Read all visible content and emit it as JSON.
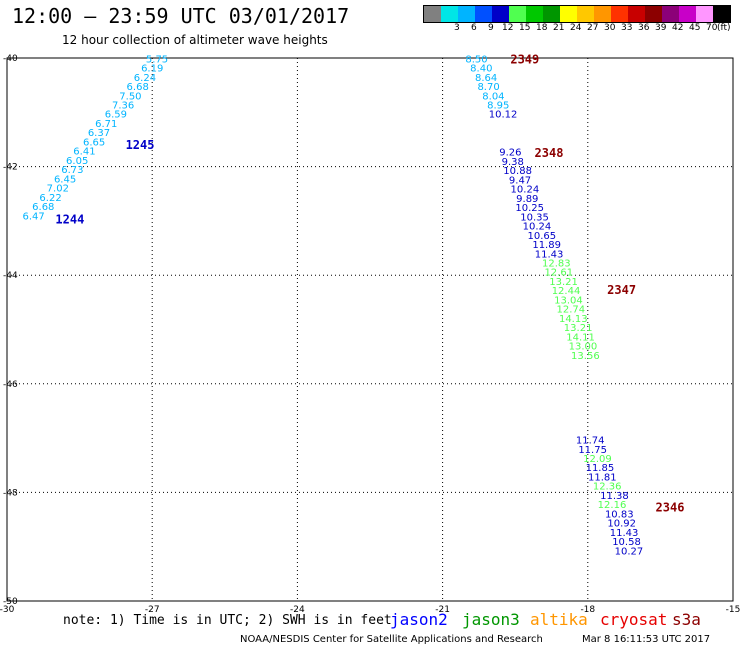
{
  "header": {
    "title": "12:00 – 23:59 UTC 03/01/2017",
    "subtitle": "12 hour collection of altimeter wave heights"
  },
  "legend": {
    "unit": "(ft)",
    "bins": [
      {
        "label": "",
        "color": "#808080"
      },
      {
        "label": "3",
        "color": "#00e6e6"
      },
      {
        "label": "6",
        "color": "#00b4ff"
      },
      {
        "label": "9",
        "color": "#0050ff"
      },
      {
        "label": "12",
        "color": "#0000c8"
      },
      {
        "label": "15",
        "color": "#50ff50"
      },
      {
        "label": "18",
        "color": "#00c800"
      },
      {
        "label": "21",
        "color": "#009600"
      },
      {
        "label": "24",
        "color": "#ffff00"
      },
      {
        "label": "27",
        "color": "#ffc800"
      },
      {
        "label": "30",
        "color": "#ff9600"
      },
      {
        "label": "33",
        "color": "#ff3200"
      },
      {
        "label": "36",
        "color": "#c80000"
      },
      {
        "label": "39",
        "color": "#8c0000"
      },
      {
        "label": "42",
        "color": "#8c0078"
      },
      {
        "label": "45",
        "color": "#c800c8"
      },
      {
        "label": "70",
        "color": "#ff96ff"
      },
      {
        "label": "",
        "color": "#000000"
      }
    ]
  },
  "footer": {
    "note": "note: 1) Time is in UTC; 2) SWH is in feet",
    "credit": "NOAA/NESDIS Center for Satellite Applications and Research",
    "timestamp": "Mar  8 16:11:53 UTC 2017",
    "satellites": [
      {
        "name": "jason2",
        "color": "#0000ff"
      },
      {
        "name": "jason3",
        "color": "#009600"
      },
      {
        "name": "altika",
        "color": "#ff9600"
      },
      {
        "name": "cryosat",
        "color": "#e60000"
      },
      {
        "name": "s3a",
        "color": "#8c0000"
      }
    ]
  },
  "chart_data": {
    "type": "scatter",
    "xlim": [
      -30,
      -15
    ],
    "ylim": [
      -50,
      -40
    ],
    "x_ticks": [
      "-30",
      "-27",
      "-24",
      "-21",
      "-18",
      "-15"
    ],
    "y_ticks": [
      "-40",
      "-42",
      "-44",
      "-46",
      "-48",
      "-50"
    ],
    "grid": true,
    "grid_style": "dotted",
    "point_labels_are_swh_ft": true,
    "series": [
      {
        "name": "jason2",
        "points": [
          {
            "lon": -26.9,
            "lat": -40.08,
            "swh": "5.75",
            "color": "#00b4ff"
          },
          {
            "lon": -27.0,
            "lat": -40.25,
            "swh": "6.19",
            "color": "#00b4ff"
          },
          {
            "lon": -27.15,
            "lat": -40.42,
            "swh": "6.24",
            "color": "#00b4ff"
          },
          {
            "lon": -27.3,
            "lat": -40.59,
            "swh": "6.68",
            "color": "#00b4ff"
          },
          {
            "lon": -27.45,
            "lat": -40.76,
            "swh": "7.50",
            "color": "#00b4ff"
          },
          {
            "lon": -27.6,
            "lat": -40.93,
            "swh": "7.36",
            "color": "#00b4ff"
          },
          {
            "lon": -27.75,
            "lat": -41.1,
            "swh": "6.59",
            "color": "#00b4ff"
          },
          {
            "lon": -27.95,
            "lat": -41.27,
            "swh": "6.71",
            "color": "#00b4ff"
          },
          {
            "lon": -28.1,
            "lat": -41.44,
            "swh": "6.37",
            "color": "#00b4ff"
          },
          {
            "lon": -28.2,
            "lat": -41.61,
            "swh": "6.65",
            "color": "#00b4ff"
          },
          {
            "lon": -28.4,
            "lat": -41.78,
            "swh": "6.41",
            "color": "#00b4ff"
          },
          {
            "lon": -28.55,
            "lat": -41.95,
            "swh": "6.05",
            "color": "#00b4ff"
          },
          {
            "lon": -28.65,
            "lat": -42.12,
            "swh": "6.73",
            "color": "#00b4ff"
          },
          {
            "lon": -28.8,
            "lat": -42.29,
            "swh": "6.45",
            "color": "#00b4ff"
          },
          {
            "lon": -28.95,
            "lat": -42.46,
            "swh": "7.02",
            "color": "#00b4ff"
          },
          {
            "lon": -29.1,
            "lat": -42.63,
            "swh": "6.22",
            "color": "#00b4ff"
          },
          {
            "lon": -29.25,
            "lat": -42.8,
            "swh": "6.68",
            "color": "#00b4ff"
          },
          {
            "lon": -29.45,
            "lat": -42.97,
            "swh": "6.47",
            "color": "#00b4ff"
          },
          {
            "lon": -20.3,
            "lat": -40.08,
            "swh": "8.50",
            "color": "#00b4ff"
          },
          {
            "lon": -20.2,
            "lat": -40.25,
            "swh": "8.40",
            "color": "#00b4ff"
          },
          {
            "lon": -20.1,
            "lat": -40.42,
            "swh": "8.64",
            "color": "#00b4ff"
          },
          {
            "lon": -20.05,
            "lat": -40.59,
            "swh": "8.70",
            "color": "#00b4ff"
          },
          {
            "lon": -19.95,
            "lat": -40.76,
            "swh": "8.04",
            "color": "#00b4ff"
          },
          {
            "lon": -19.85,
            "lat": -40.93,
            "swh": "8.95",
            "color": "#00b4ff"
          },
          {
            "lon": -19.75,
            "lat": -41.1,
            "swh": "10.12",
            "color": "#0000c8"
          },
          {
            "lon": -19.6,
            "lat": -41.8,
            "swh": "9.26",
            "color": "#0000c8"
          },
          {
            "lon": -19.55,
            "lat": -41.97,
            "swh": "9.38",
            "color": "#0000c8"
          },
          {
            "lon": -19.45,
            "lat": -42.14,
            "swh": "10.88",
            "color": "#0000c8"
          },
          {
            "lon": -19.4,
            "lat": -42.31,
            "swh": "9.47",
            "color": "#0000c8"
          },
          {
            "lon": -19.3,
            "lat": -42.48,
            "swh": "10.24",
            "color": "#0000c8"
          },
          {
            "lon": -19.25,
            "lat": -42.65,
            "swh": "9.89",
            "color": "#0000c8"
          },
          {
            "lon": -19.2,
            "lat": -42.82,
            "swh": "10.25",
            "color": "#0000c8"
          },
          {
            "lon": -19.1,
            "lat": -42.99,
            "swh": "10.35",
            "color": "#0000c8"
          },
          {
            "lon": -19.05,
            "lat": -43.16,
            "swh": "10.24",
            "color": "#0000c8"
          },
          {
            "lon": -18.95,
            "lat": -43.33,
            "swh": "10.65",
            "color": "#0000c8"
          },
          {
            "lon": -18.85,
            "lat": -43.5,
            "swh": "11.89",
            "color": "#0000c8"
          },
          {
            "lon": -18.8,
            "lat": -43.67,
            "swh": "11.43",
            "color": "#0000c8"
          },
          {
            "lon": -17.95,
            "lat": -47.1,
            "swh": "11.74",
            "color": "#0000c8"
          },
          {
            "lon": -17.9,
            "lat": -47.27,
            "swh": "11.75",
            "color": "#0000c8"
          },
          {
            "lon": -17.75,
            "lat": -47.61,
            "swh": "11.85",
            "color": "#0000c8"
          },
          {
            "lon": -17.7,
            "lat": -47.78,
            "swh": "11.81",
            "color": "#0000c8"
          },
          {
            "lon": -17.45,
            "lat": -48.12,
            "swh": "11.38",
            "color": "#0000c8"
          },
          {
            "lon": -17.35,
            "lat": -48.46,
            "swh": "10.83",
            "color": "#0000c8"
          },
          {
            "lon": -17.3,
            "lat": -48.63,
            "swh": "10.92",
            "color": "#0000c8"
          },
          {
            "lon": -17.25,
            "lat": -48.8,
            "swh": "11.43",
            "color": "#0000c8"
          },
          {
            "lon": -17.2,
            "lat": -48.97,
            "swh": "10.58",
            "color": "#0000c8"
          },
          {
            "lon": -17.15,
            "lat": -49.14,
            "swh": "10.27",
            "color": "#0000c8"
          }
        ]
      },
      {
        "name": "jason3",
        "points": [
          {
            "lon": -18.65,
            "lat": -43.84,
            "swh": "12.83",
            "color": "#50ff50"
          },
          {
            "lon": -18.6,
            "lat": -44.01,
            "swh": "12.61",
            "color": "#50ff50"
          },
          {
            "lon": -18.5,
            "lat": -44.18,
            "swh": "13.21",
            "color": "#50ff50"
          },
          {
            "lon": -18.45,
            "lat": -44.35,
            "swh": "12.44",
            "color": "#50ff50"
          },
          {
            "lon": -18.4,
            "lat": -44.52,
            "swh": "13.04",
            "color": "#50ff50"
          },
          {
            "lon": -18.35,
            "lat": -44.69,
            "swh": "12.74",
            "color": "#50ff50"
          },
          {
            "lon": -18.3,
            "lat": -44.86,
            "swh": "14.13",
            "color": "#50ff50"
          },
          {
            "lon": -18.2,
            "lat": -45.03,
            "swh": "13.21",
            "color": "#50ff50"
          },
          {
            "lon": -18.15,
            "lat": -45.2,
            "swh": "14.11",
            "color": "#50ff50"
          },
          {
            "lon": -18.1,
            "lat": -45.37,
            "swh": "13.00",
            "color": "#50ff50"
          },
          {
            "lon": -18.05,
            "lat": -45.54,
            "swh": "13.56",
            "color": "#50ff50"
          },
          {
            "lon": -17.8,
            "lat": -47.44,
            "swh": "12.09",
            "color": "#50ff50"
          },
          {
            "lon": -17.6,
            "lat": -47.95,
            "swh": "12.36",
            "color": "#50ff50"
          },
          {
            "lon": -17.5,
            "lat": -48.29,
            "swh": "12.16",
            "color": "#50ff50"
          }
        ]
      }
    ],
    "time_labels": [
      {
        "text": "1245",
        "lon": -27.55,
        "lat": -41.68,
        "color": "#0000c8"
      },
      {
        "text": "1244",
        "lon": -29.0,
        "lat": -43.05,
        "color": "#0000c8"
      },
      {
        "text": "2349",
        "lon": -19.6,
        "lat": -40.1,
        "color": "#8c0000"
      },
      {
        "text": "2348",
        "lon": -19.1,
        "lat": -41.82,
        "color": "#8c0000"
      },
      {
        "text": "2347",
        "lon": -17.6,
        "lat": -44.35,
        "color": "#8c0000"
      },
      {
        "text": "2346",
        "lon": -16.6,
        "lat": -48.35,
        "color": "#8c0000"
      }
    ]
  }
}
